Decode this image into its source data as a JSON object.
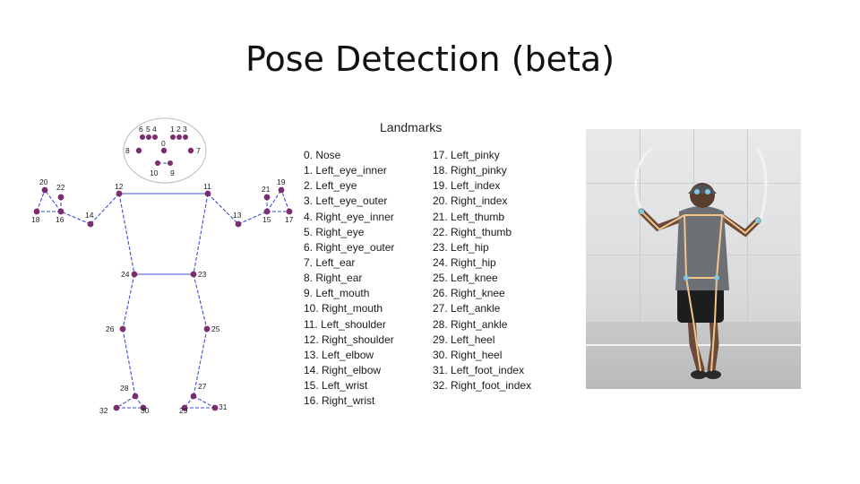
{
  "title": "Pose Detection (beta)",
  "landmarks_heading": "Landmarks",
  "landmarks_left": [
    "0. Nose",
    "1. Left_eye_inner",
    "2. Left_eye",
    "3. Left_eye_outer",
    "4. Right_eye_inner",
    "5. Right_eye",
    "6. Right_eye_outer",
    "7. Left_ear",
    "8. Right_ear",
    "9. Left_mouth",
    "10. Right_mouth",
    "11. Left_shoulder",
    "12. Right_shoulder",
    "13. Left_elbow",
    "14. Right_elbow",
    "15. Left_wrist",
    "16. Right_wrist"
  ],
  "landmarks_right": [
    "17. Left_pinky",
    "18. Right_pinky",
    "19. Left_index",
    "20. Right_index",
    "21. Left_thumb",
    "22. Right_thumb",
    "23. Left_hip",
    "24. Right_hip",
    "25. Left_knee",
    "26. Right_knee",
    "27. Left_ankle",
    "28. Right_ankle",
    "29. Left_heel",
    "30. Right_heel",
    "31. Left_foot_index",
    "32. Right_foot_index"
  ],
  "diagram_labels": {
    "l0": "0",
    "l1": "1",
    "l2": "2",
    "l3": "3",
    "l4": "4",
    "l5": "5",
    "l6": "6",
    "l7": "7",
    "l8": "8",
    "l9": "9",
    "l10": "10",
    "l11": "11",
    "l12": "12",
    "l13": "13",
    "l14": "14",
    "l15": "15",
    "l16": "16",
    "l17": "17",
    "l18": "18",
    "l19": "19",
    "l20": "20",
    "l21": "21",
    "l22": "22",
    "l23": "23",
    "l24": "24",
    "l25": "25",
    "l26": "26",
    "l27": "27",
    "l28": "28",
    "l29": "29",
    "l30": "30",
    "l31": "31",
    "l32": "32"
  },
  "colors": {
    "joint": "#7b2d6e",
    "limb": "#3b4fd6",
    "overlay": "#f2c58a"
  }
}
